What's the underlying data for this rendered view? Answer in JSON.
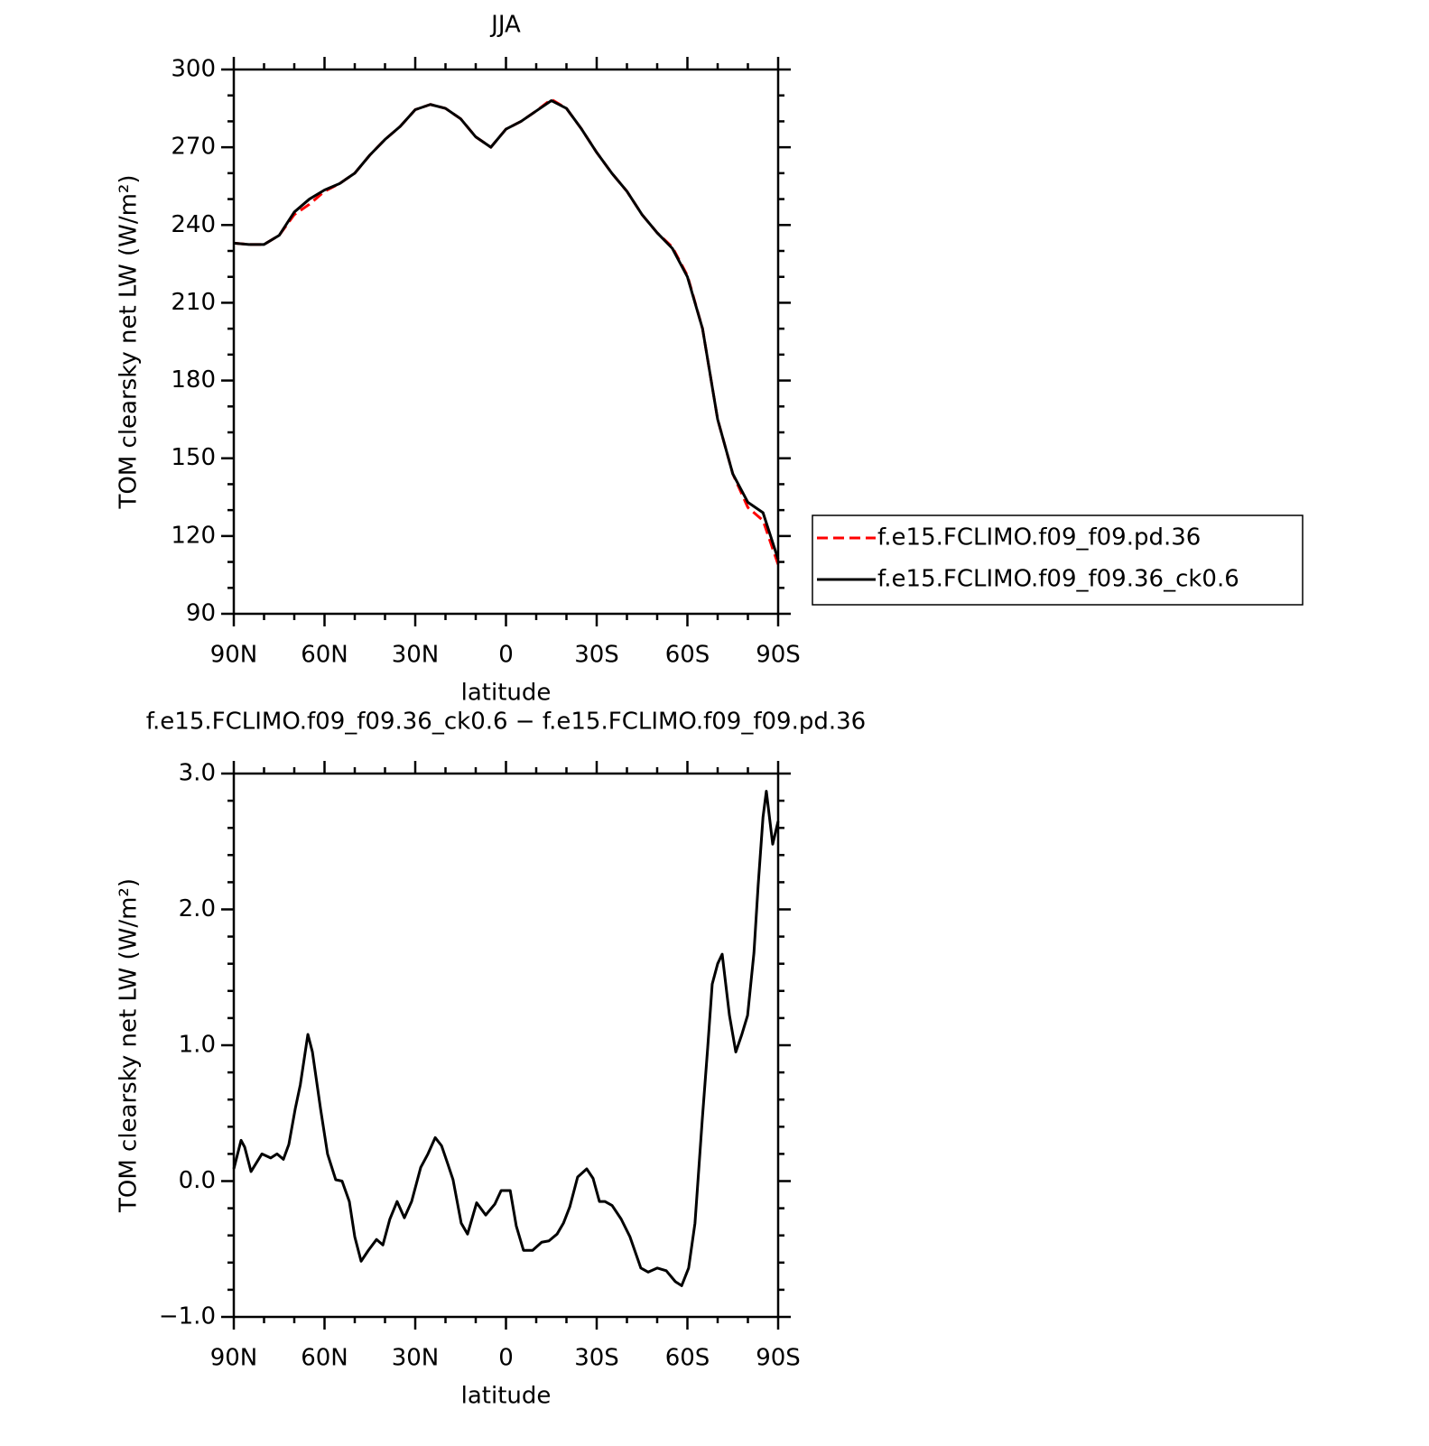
{
  "chart_data": [
    {
      "type": "line",
      "title": "JJA",
      "xlabel": "latitude",
      "ylabel": "TOM clearsky net LW (W/m²)",
      "xlim": [
        90,
        -90
      ],
      "xticks": [
        {
          "value": 90,
          "label": "90N"
        },
        {
          "value": 60,
          "label": "60N"
        },
        {
          "value": 30,
          "label": "30N"
        },
        0,
        {
          "value": -30,
          "label": "30S"
        },
        {
          "value": -60,
          "label": "60S"
        },
        {
          "value": -90,
          "label": "90S"
        }
      ],
      "ylim": [
        90,
        300
      ],
      "yticks": [
        90,
        120,
        150,
        180,
        210,
        240,
        270,
        300
      ],
      "legend": "right",
      "x": [
        90,
        85,
        80,
        75,
        70,
        65,
        60,
        55,
        50,
        45,
        40,
        35,
        30,
        25,
        20,
        15,
        10,
        5,
        0,
        -5,
        -10,
        -15,
        -20,
        -25,
        -30,
        -35,
        -40,
        -45,
        -50,
        -55,
        -60,
        -65,
        -70,
        -75,
        -80,
        -85,
        -90
      ],
      "series": [
        {
          "name": "f.e15.FCLIMO.f09_f09.pd.36",
          "color": "#ff0000",
          "dashed": true,
          "values": [
            233,
            232.5,
            232.5,
            236,
            244,
            248,
            253,
            256,
            260,
            267,
            273,
            278,
            284.5,
            286.5,
            285,
            281,
            274,
            270,
            277,
            280,
            284,
            288.5,
            285,
            277,
            268,
            260,
            253,
            244,
            237,
            231.5,
            220.5,
            200,
            165,
            144,
            131,
            126,
            109
          ]
        },
        {
          "name": "f.e15.FCLIMO.f09_f09.36_ck0.6",
          "color": "#000000",
          "dashed": false,
          "values": [
            233,
            232.5,
            232.5,
            236,
            245,
            250,
            253.5,
            256,
            260,
            267,
            273,
            278,
            284.5,
            286.5,
            285,
            281,
            274,
            270,
            277,
            280,
            284,
            288,
            285,
            277,
            268,
            260,
            253,
            244,
            237,
            231,
            220,
            200,
            165,
            144,
            133,
            129,
            111
          ]
        }
      ]
    },
    {
      "type": "line",
      "title": "f.e15.FCLIMO.f09_f09.36_ck0.6 − f.e15.FCLIMO.f09_f09.pd.36",
      "xlabel": "latitude",
      "ylabel": "TOM clearsky net LW (W/m²)",
      "xlim": [
        90,
        -90
      ],
      "xticks": [
        {
          "value": 90,
          "label": "90N"
        },
        {
          "value": 60,
          "label": "60N"
        },
        {
          "value": 30,
          "label": "30N"
        },
        0,
        {
          "value": -30,
          "label": "30S"
        },
        {
          "value": -60,
          "label": "60S"
        },
        {
          "value": -90,
          "label": "90S"
        }
      ],
      "ylim": [
        -1,
        3
      ],
      "yticks": [
        {
          "value": -1,
          "label": "−1.0"
        },
        {
          "value": 0,
          "label": "0.0"
        },
        {
          "value": 1,
          "label": "1.0"
        },
        {
          "value": 2,
          "label": "2.0"
        },
        {
          "value": 3,
          "label": "3.0"
        }
      ],
      "x": [
        90,
        87.6,
        86.4,
        84.3,
        80.7,
        77.8,
        75.7,
        73.6,
        71.8,
        69.7,
        68,
        65.5,
        64,
        61.3,
        59,
        56.3,
        54.2,
        51.8,
        50,
        47.9,
        45.5,
        42.8,
        40.7,
        38.4,
        36,
        33.6,
        31.2,
        28.2,
        25.8,
        23.4,
        21.3,
        19.3,
        17.5,
        14.8,
        12.7,
        9.7,
        6.7,
        3.7,
        1.6,
        -1.4,
        -3.4,
        -5.8,
        -8.8,
        -11.8,
        -14.2,
        -16.9,
        -19,
        -21.1,
        -23.7,
        -26.7,
        -28.8,
        -30.9,
        -32.7,
        -35.1,
        -38.1,
        -41,
        -44.6,
        -47,
        -50,
        -53,
        -56,
        -58.1,
        -60.4,
        -62.5,
        -64.9,
        -66.7,
        -68.2,
        -70,
        -71.5,
        -73.9,
        -76,
        -78,
        -79.9,
        -82,
        -83.4,
        -85,
        -86.1,
        -88.2,
        -90
      ],
      "series": [
        {
          "color": "#000000",
          "dashed": false,
          "values": [
            0.09,
            0.3,
            0.25,
            0.07,
            0.2,
            0.17,
            0.2,
            0.16,
            0.27,
            0.53,
            0.71,
            1.08,
            0.95,
            0.53,
            0.2,
            0.01,
            0.0,
            -0.15,
            -0.41,
            -0.59,
            -0.51,
            -0.43,
            -0.47,
            -0.28,
            -0.15,
            -0.27,
            -0.15,
            0.1,
            0.2,
            0.32,
            0.26,
            0.13,
            0.01,
            -0.31,
            -0.39,
            -0.16,
            -0.25,
            -0.17,
            -0.07,
            -0.07,
            -0.33,
            -0.51,
            -0.51,
            -0.45,
            -0.44,
            -0.39,
            -0.31,
            -0.19,
            0.03,
            0.09,
            0.02,
            -0.15,
            -0.15,
            -0.18,
            -0.28,
            -0.41,
            -0.64,
            -0.67,
            -0.64,
            -0.66,
            -0.74,
            -0.77,
            -0.64,
            -0.31,
            0.45,
            0.98,
            1.45,
            1.6,
            1.67,
            1.22,
            0.95,
            1.08,
            1.22,
            1.68,
            2.18,
            2.68,
            2.87,
            2.48,
            2.65
          ]
        }
      ]
    }
  ]
}
